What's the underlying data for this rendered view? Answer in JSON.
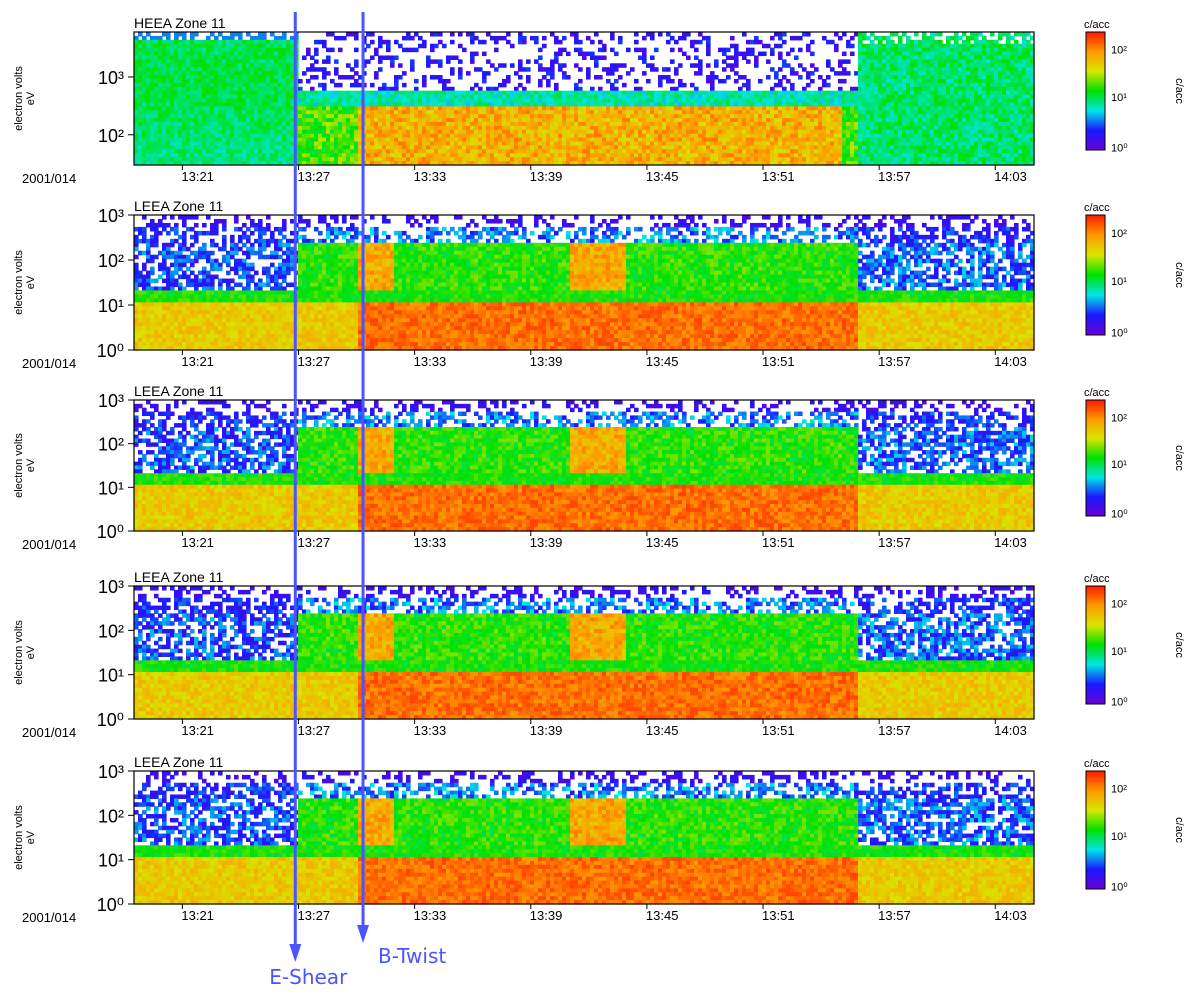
{
  "chart_data": {
    "type": "heatmap",
    "date_label": "2001/014",
    "x_tick_labels": [
      "13:21",
      "13:27",
      "13:33",
      "13:39",
      "13:45",
      "13:51",
      "13:57",
      "14:03"
    ],
    "y_label": [
      "electron volts",
      "eV"
    ],
    "colorbar_unit": "c/acc",
    "colorbar_ticks": [
      "10²",
      "10¹",
      "10⁰"
    ],
    "colorscale": [
      "#6a00d8",
      "#1a1aff",
      "#00e6e6",
      "#00e000",
      "#d8e600",
      "#ff9900",
      "#ff1a00"
    ],
    "panels": [
      {
        "title": "HEEA Zone 11",
        "y_scale": "log",
        "y_tick_labels": [
          "10³",
          "10²"
        ]
      },
      {
        "title": "LEEA Zone 11",
        "y_scale": "log",
        "y_tick_labels": [
          "10³",
          "10²",
          "10¹",
          "10⁰"
        ]
      },
      {
        "title": "LEEA Zone 11",
        "y_scale": "log",
        "y_tick_labels": [
          "10³",
          "10²",
          "10¹",
          "10⁰"
        ]
      },
      {
        "title": "LEEA Zone 11",
        "y_scale": "log",
        "y_tick_labels": [
          "10³",
          "10²",
          "10¹",
          "10⁰"
        ]
      },
      {
        "title": "LEEA Zone 11",
        "y_scale": "log",
        "y_tick_labels": [
          "10³",
          "10²",
          "10¹",
          "10⁰"
        ]
      }
    ],
    "markers": [
      {
        "label": "E-Shear",
        "time": "13:26:50"
      },
      {
        "label": "B-Twist",
        "time": "13:30:20"
      }
    ],
    "marker_color": "#4a55ff"
  }
}
